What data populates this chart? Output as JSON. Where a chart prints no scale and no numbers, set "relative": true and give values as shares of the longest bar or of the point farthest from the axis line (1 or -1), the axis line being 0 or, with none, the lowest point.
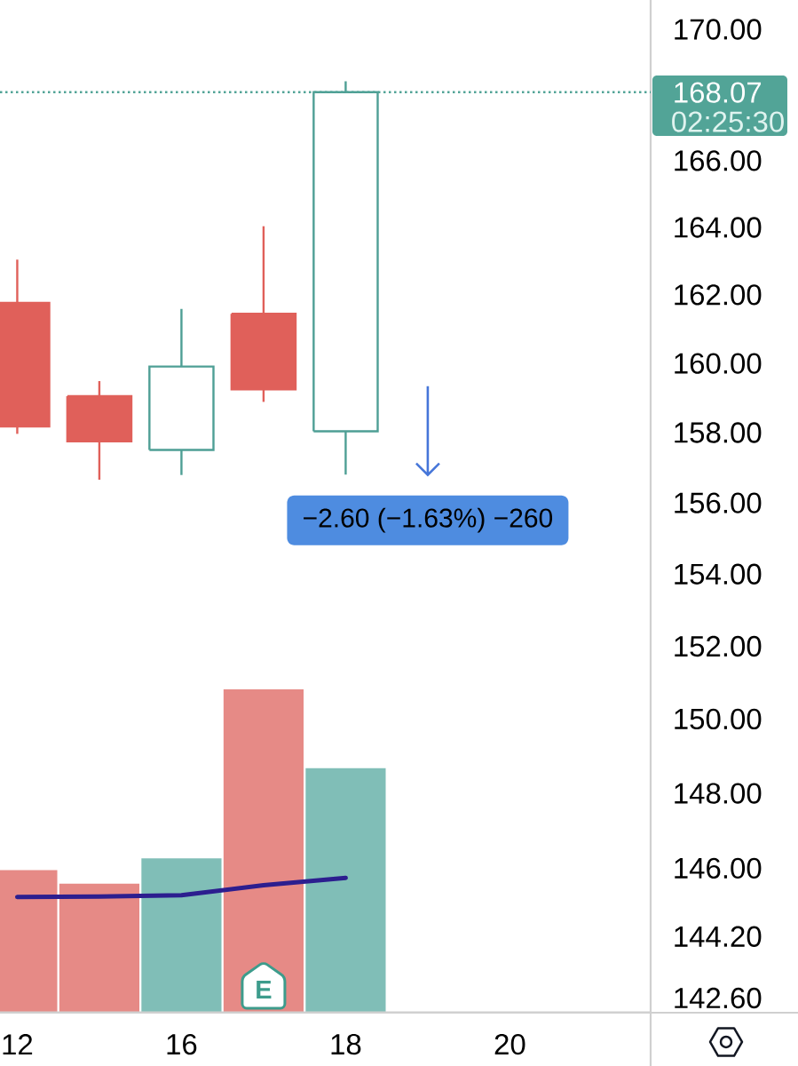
{
  "chart_data": [
    {
      "type": "candlestick",
      "categories": [
        "12",
        null,
        "16",
        null,
        "18",
        null,
        "20"
      ],
      "ohlc": [
        [
          161.77,
          163.04,
          157.97,
          158.18
        ],
        [
          159.05,
          159.49,
          156.66,
          157.76
        ],
        [
          157.51,
          161.59,
          156.79,
          159.91
        ],
        [
          161.45,
          164.03,
          158.89,
          159.25
        ],
        [
          158.04,
          168.4,
          156.81,
          168.07
        ],
        null,
        null
      ],
      "colors": [
        "#e0605a",
        "#e0605a",
        "#4e9f95",
        "#e0605a",
        "#4e9f95",
        null,
        null
      ],
      "log": "y",
      "ylim": [
        142.23,
        170.91
      ],
      "yticks": [
        {
          "value": 142.6,
          "label": "142.60"
        },
        {
          "value": 144.2,
          "label": "144.20"
        },
        {
          "value": 146,
          "label": "146.00"
        },
        {
          "value": 148,
          "label": "148.00"
        },
        {
          "value": 150,
          "label": "150.00"
        },
        {
          "value": 152,
          "label": "152.00"
        },
        {
          "value": 154,
          "label": "154.00"
        },
        {
          "value": 156,
          "label": "156.00"
        },
        {
          "value": 158,
          "label": "158.00"
        },
        {
          "value": 160,
          "label": "160.00"
        },
        {
          "value": 162,
          "label": "162.00"
        },
        {
          "value": 164,
          "label": "164.00"
        },
        {
          "value": 166,
          "label": "166.00"
        },
        {
          "value": 170,
          "label": "170.00"
        }
      ],
      "ref_lines": [
        {
          "axis": "y",
          "value": 168.07,
          "label": "168.07",
          "color": "#52a497",
          "line_style": "dotted"
        }
      ],
      "annotations": [
        "−2.60 (−1.63%) −260",
        "02:25:30",
        "E"
      ]
    },
    {
      "type": "bar",
      "relative": true,
      "categories": [
        null,
        null,
        null,
        null,
        null,
        null,
        null
      ],
      "series": [
        {
          "type": "bar",
          "values": [
            0.441,
            0.399,
            0.477,
            1,
            0.756,
            null,
            null
          ],
          "colors": [
            "#e68a86",
            "#e68a86",
            "#80beb7",
            "#e68a86",
            "#80beb7",
            null,
            null
          ]
        },
        {
          "type": "line",
          "values": [
            0.358,
            0.359,
            0.363,
            0.394,
            0.417,
            null,
            null
          ],
          "color": "#2c1e8f"
        }
      ]
    }
  ]
}
